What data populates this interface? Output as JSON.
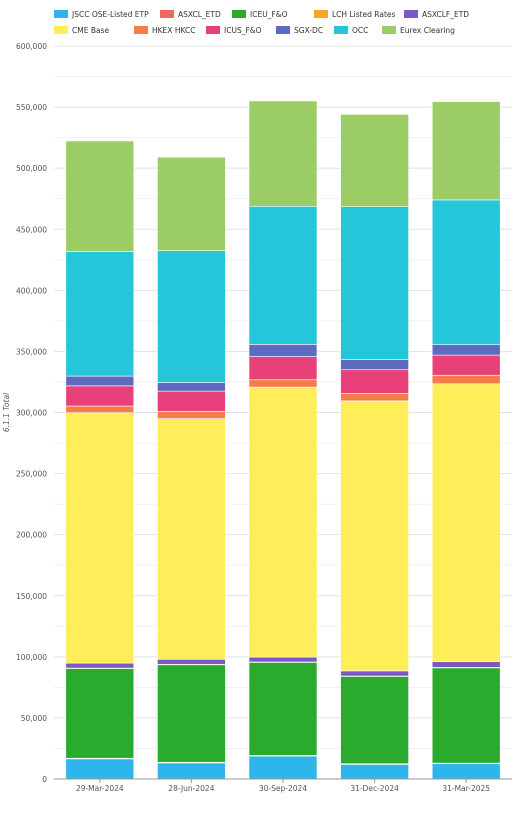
{
  "chart_data": {
    "type": "bar",
    "stacked": true,
    "ylabel": "6.1.1 Total",
    "ylim": [
      0,
      600000
    ],
    "yticks": [
      0,
      50000,
      100000,
      150000,
      200000,
      250000,
      300000,
      350000,
      400000,
      450000,
      500000,
      550000,
      600000
    ],
    "ytick_labels": [
      "0",
      "50,000",
      "100,000",
      "150,000",
      "200,000",
      "250,000",
      "300,000",
      "350,000",
      "400,000",
      "450,000",
      "500,000",
      "550,000",
      "600,000"
    ],
    "grid": true,
    "legend_position": "top",
    "categories": [
      "29-Mar-2024",
      "28-Jun-2024",
      "30-Sep-2024",
      "31-Dec-2024",
      "31-Mar-2025"
    ],
    "series": [
      {
        "name": "JSCC OSE-Listed ETP",
        "color": "#2eb5ec",
        "values": [
          16500,
          13200,
          18800,
          12000,
          12500
        ]
      },
      {
        "name": "ASXCL_ETD",
        "color": "#ee6a5d",
        "values": [
          500,
          500,
          500,
          500,
          500
        ]
      },
      {
        "name": "ICEU_F&O",
        "color": "#2aab2e",
        "values": [
          73500,
          79800,
          76200,
          71500,
          78000
        ]
      },
      {
        "name": "LCH Listed Rates",
        "color": "#f5a623",
        "values": [
          300,
          300,
          300,
          300,
          300
        ]
      },
      {
        "name": "ASXCLF_ETD",
        "color": "#7e57c2",
        "values": [
          4000,
          4200,
          4000,
          4200,
          4700
        ]
      },
      {
        "name": "CME Base",
        "color": "#ffed5a",
        "values": [
          205000,
          197000,
          221000,
          221000,
          227500
        ]
      },
      {
        "name": "HKEX HKCC",
        "color": "#f47b4a",
        "values": [
          5500,
          6000,
          6000,
          6000,
          7000
        ]
      },
      {
        "name": "ICUS_F&O",
        "color": "#e8417a",
        "values": [
          16500,
          16500,
          19000,
          19500,
          16500
        ]
      },
      {
        "name": "SGX-DC",
        "color": "#5c6bc0",
        "values": [
          8000,
          7000,
          10000,
          8500,
          8500
        ]
      },
      {
        "name": "OCC",
        "color": "#26c6da",
        "values": [
          102000,
          108000,
          113000,
          125000,
          118500
        ]
      },
      {
        "name": "Eurex Clearing",
        "color": "#9ccc65",
        "values": [
          90500,
          76500,
          86200,
          75500,
          80500
        ]
      }
    ]
  },
  "legend_rows": [
    [
      "JSCC OSE-Listed ETP",
      "ASXCL_ETD",
      "ICEU_F&O",
      "LCH Listed Rates",
      "ASXCLF_ETD"
    ],
    [
      "CME Base",
      "HKEX HKCC",
      "ICUS_F&O",
      "SGX-DC",
      "OCC",
      "Eurex Clearing"
    ]
  ]
}
